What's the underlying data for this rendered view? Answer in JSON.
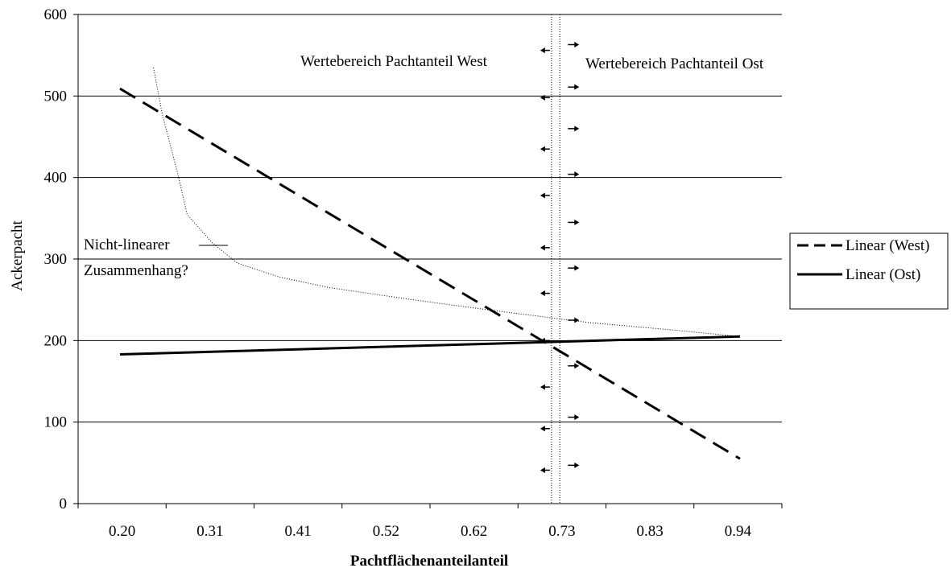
{
  "chart_data": {
    "type": "line",
    "xlabel": "Pachtflächenanteilanteil",
    "ylabel": "Ackerpacht",
    "x_tick_labels": [
      "0.20",
      "0.31",
      "0.41",
      "0.52",
      "0.62",
      "0.73",
      "0.83",
      "0.94"
    ],
    "xlim": [
      0.15,
      0.99
    ],
    "ylim": [
      0,
      600
    ],
    "y_ticks": [
      0,
      100,
      200,
      300,
      400,
      500,
      600
    ],
    "grid": "horizontal",
    "legend_position": "right",
    "series": [
      {
        "name": "Linear (West)",
        "style": "dashed",
        "color": "#000000",
        "points": [
          [
            0.2,
            509
          ],
          [
            0.94,
            55
          ]
        ]
      },
      {
        "name": "Linear (Ost)",
        "style": "solid",
        "color": "#000000",
        "points": [
          [
            0.2,
            183
          ],
          [
            0.94,
            205
          ]
        ]
      }
    ],
    "curve": {
      "style": "dotted",
      "color": "#000000",
      "points": [
        [
          0.24,
          535
        ],
        [
          0.25,
          480
        ],
        [
          0.27,
          400
        ],
        [
          0.28,
          355
        ],
        [
          0.31,
          320
        ],
        [
          0.34,
          295
        ],
        [
          0.39,
          278
        ],
        [
          0.45,
          265
        ],
        [
          0.55,
          250
        ],
        [
          0.66,
          235
        ],
        [
          0.76,
          222
        ],
        [
          0.86,
          213
        ],
        [
          0.94,
          205
        ]
      ]
    },
    "vertical_lines": [
      0.715,
      0.725
    ],
    "region_labels": {
      "west": "Wertebereich Pachtanteil West",
      "east": "Wertebereich Pachtanteil Ost"
    },
    "annotation": {
      "line1": "Nicht-linearer",
      "line2": "Zusammenhang?"
    },
    "arrows": {
      "left_y": [
        556,
        498,
        435,
        378,
        314,
        258,
        200,
        143,
        92,
        41
      ],
      "right_y": [
        563,
        511,
        460,
        404,
        345,
        289,
        225,
        169,
        106,
        47
      ]
    }
  }
}
